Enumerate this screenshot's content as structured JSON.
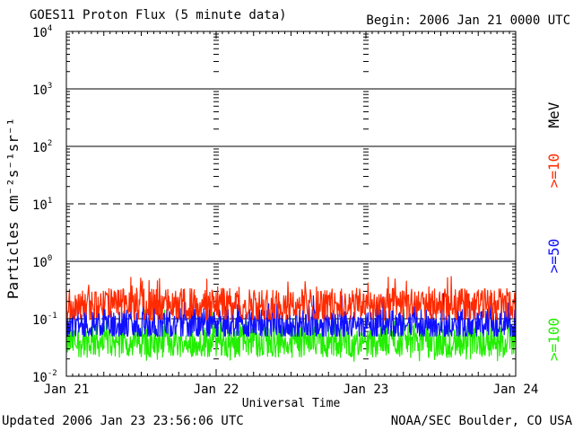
{
  "header": {
    "title": "GOES11 Proton Flux (5 minute data)",
    "begin": "Begin: 2006 Jan 21 0000 UTC"
  },
  "footer": {
    "updated": "Updated 2006 Jan 23 23:56:06 UTC",
    "credit": "NOAA/SEC Boulder, CO USA"
  },
  "colors": {
    "ge10": "#ff2a00",
    "ge50": "#1010ff",
    "ge100": "#22ee00",
    "axis": "#000000"
  },
  "chart_data": {
    "type": "line",
    "title": "GOES11 Proton Flux (5 minute data)",
    "xlabel": "Universal Time",
    "ylabel": "Particles cm⁻²s⁻¹sr⁻¹",
    "yscale": "log",
    "ylim": [
      0.01,
      10000
    ],
    "ytick_labels": [
      {
        "base": "10",
        "exp": "-2"
      },
      {
        "base": "10",
        "exp": "-1"
      },
      {
        "base": "10",
        "exp": "0"
      },
      {
        "base": "10",
        "exp": "1"
      },
      {
        "base": "10",
        "exp": "2"
      },
      {
        "base": "10",
        "exp": "3"
      },
      {
        "base": "10",
        "exp": "4"
      }
    ],
    "xlim": [
      "2006-01-21 00:00",
      "2006-01-24 00:00"
    ],
    "xtick_labels": [
      "Jan 21",
      "Jan 22",
      "Jan 23",
      "Jan 24"
    ],
    "unit_label": "MeV",
    "series": [
      {
        "name": ">=10",
        "color": "#ff2a00",
        "typical": 0.18,
        "min": 0.09,
        "max": 0.55
      },
      {
        "name": ">=50",
        "color": "#1010ff",
        "typical": 0.08,
        "min": 0.05,
        "max": 0.28
      },
      {
        "name": ">=100",
        "color": "#22ee00",
        "typical": 0.04,
        "min": 0.018,
        "max": 0.15
      }
    ]
  }
}
